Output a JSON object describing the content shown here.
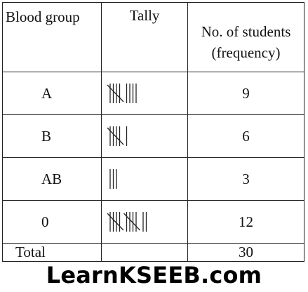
{
  "table": {
    "headers": {
      "group": "Blood group",
      "tally": "Tally",
      "freq_line1": "No. of students",
      "freq_line2": "(frequency)"
    },
    "rows": [
      {
        "group": "A",
        "tally_count": 9,
        "count": "9"
      },
      {
        "group": "B",
        "tally_count": 6,
        "count": "6"
      },
      {
        "group": "AB",
        "tally_count": 3,
        "count": "3"
      },
      {
        "group": "0",
        "tally_count": 12,
        "count": "12"
      }
    ],
    "total": {
      "label": "Total",
      "tally": "",
      "count": "30"
    }
  },
  "footer": {
    "brand": "LearnKSEEB.com"
  }
}
